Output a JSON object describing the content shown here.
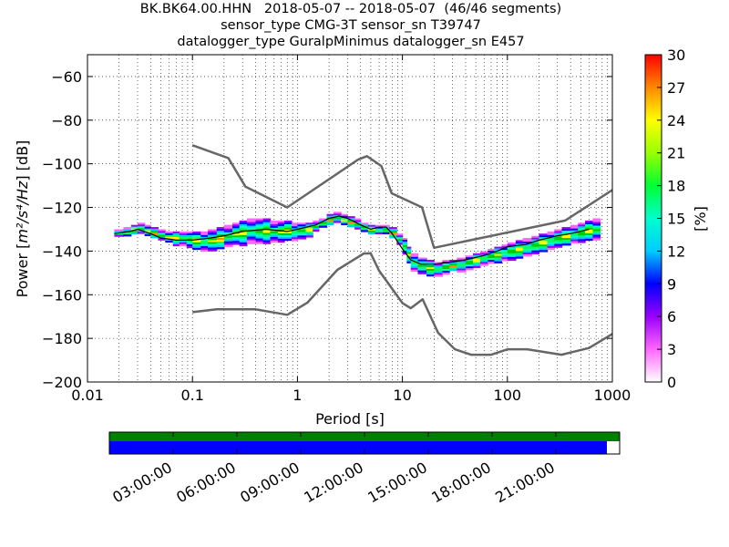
{
  "figure": {
    "title_lines": [
      "BK.BK64.00.HHN   2018-05-07 -- 2018-05-07  (46/46 segments)",
      "sensor_type CMG-3T sensor_sn T39747",
      "datalogger_type GuralpMinimus datalogger_sn E457"
    ]
  },
  "chart_data": [
    {
      "type": "heatmap",
      "title": "",
      "xlabel": "Period [s]",
      "ylabel_prefix": "Power [",
      "ylabel_math": "m²/s⁴/Hz",
      "ylabel_suffix": "] [dB]",
      "x_scale": "log",
      "xlim": [
        0.01,
        1000
      ],
      "ylim": [
        -200,
        -50
      ],
      "x_ticks": [
        0.01,
        0.1,
        1,
        10,
        100,
        1000
      ],
      "x_tick_labels": [
        "0.01",
        "0.1",
        "1",
        "10",
        "100",
        "1000"
      ],
      "y_ticks": [
        -200,
        -180,
        -160,
        -140,
        -120,
        -100,
        -80,
        -60
      ],
      "y_tick_labels": [
        "−200",
        "−180",
        "−160",
        "−140",
        "−120",
        "−100",
        "−80",
        "−60"
      ],
      "grid": true,
      "colorbar": {
        "label": "[%]",
        "range": [
          0,
          30
        ],
        "ticks": [
          0,
          3,
          6,
          9,
          12,
          15,
          18,
          21,
          24,
          27,
          30
        ],
        "tick_labels": [
          "0",
          "3",
          "6",
          "9",
          "12",
          "15",
          "18",
          "21",
          "24",
          "27",
          "30"
        ]
      },
      "mean_psd": {
        "name": "mean",
        "color": "#000000",
        "points": [
          [
            0.018,
            -132
          ],
          [
            0.025,
            -131
          ],
          [
            0.03,
            -130
          ],
          [
            0.04,
            -132
          ],
          [
            0.05,
            -134
          ],
          [
            0.07,
            -135
          ],
          [
            0.1,
            -135
          ],
          [
            0.15,
            -134
          ],
          [
            0.2,
            -133
          ],
          [
            0.3,
            -131
          ],
          [
            0.5,
            -130
          ],
          [
            0.8,
            -131
          ],
          [
            1,
            -130
          ],
          [
            1.5,
            -128
          ],
          [
            2,
            -125
          ],
          [
            2.5,
            -124
          ],
          [
            3,
            -125
          ],
          [
            4,
            -128
          ],
          [
            5,
            -130
          ],
          [
            6,
            -129
          ],
          [
            7,
            -129
          ],
          [
            8,
            -132
          ],
          [
            10,
            -139
          ],
          [
            12,
            -144
          ],
          [
            15,
            -146
          ],
          [
            20,
            -146
          ],
          [
            30,
            -145
          ],
          [
            40,
            -144
          ],
          [
            60,
            -142
          ],
          [
            80,
            -140
          ],
          [
            100,
            -138
          ],
          [
            150,
            -137
          ],
          [
            200,
            -135
          ],
          [
            300,
            -133
          ],
          [
            400,
            -132
          ],
          [
            600,
            -130
          ]
        ]
      },
      "noise_models": [
        {
          "name": "NHNM",
          "color": "#666666",
          "points": [
            [
              0.1,
              -91.5
            ],
            [
              0.22,
              -97.4
            ],
            [
              0.32,
              -110.5
            ],
            [
              0.8,
              -120
            ],
            [
              3.8,
              -98
            ],
            [
              4.6,
              -96.5
            ],
            [
              6.3,
              -101
            ],
            [
              7.9,
              -113.5
            ],
            [
              15.4,
              -120
            ],
            [
              20,
              -138.5
            ],
            [
              354.8,
              -126
            ],
            [
              1000,
              -112
            ]
          ]
        },
        {
          "name": "NLNM",
          "color": "#666666",
          "points": [
            [
              0.1,
              -168
            ],
            [
              0.17,
              -166.7
            ],
            [
              0.4,
              -166.7
            ],
            [
              0.8,
              -169.2
            ],
            [
              1.24,
              -163.7
            ],
            [
              2.4,
              -148.6
            ],
            [
              4.3,
              -141.1
            ],
            [
              5,
              -141.1
            ],
            [
              6,
              -149
            ],
            [
              10,
              -163.8
            ],
            [
              12,
              -166.2
            ],
            [
              15.6,
              -162.1
            ],
            [
              21.9,
              -177.5
            ],
            [
              31.6,
              -185
            ],
            [
              45,
              -187.5
            ],
            [
              70,
              -187.5
            ],
            [
              101,
              -185
            ],
            [
              154,
              -185
            ],
            [
              328,
              -187.5
            ],
            [
              600,
              -184.4
            ],
            [
              1000,
              -178
            ]
          ]
        }
      ],
      "histogram_colors": [
        "#ff66ff",
        "#9900ff",
        "#0000ff",
        "#00ccff",
        "#00ffcc",
        "#00ff66",
        "#00cc00",
        "#ffff00",
        "#ff8800",
        "#ff0000"
      ],
      "histogram_bands": [
        [
          0.018,
          -133,
          -130
        ],
        [
          0.022,
          -133,
          -129
        ],
        [
          0.026,
          -132,
          -128
        ],
        [
          0.03,
          -132,
          -127
        ],
        [
          0.035,
          -133,
          -128
        ],
        [
          0.04,
          -134,
          -129
        ],
        [
          0.047,
          -135,
          -130
        ],
        [
          0.055,
          -136,
          -131
        ],
        [
          0.065,
          -137,
          -131
        ],
        [
          0.075,
          -137,
          -131
        ],
        [
          0.088,
          -138,
          -131
        ],
        [
          0.1,
          -139,
          -131
        ],
        [
          0.12,
          -140,
          -131
        ],
        [
          0.14,
          -140,
          -130
        ],
        [
          0.17,
          -139,
          -129
        ],
        [
          0.2,
          -138,
          -128
        ],
        [
          0.24,
          -137,
          -127
        ],
        [
          0.28,
          -137,
          -126
        ],
        [
          0.33,
          -136,
          -125
        ],
        [
          0.4,
          -136,
          -125
        ],
        [
          0.47,
          -136,
          -125
        ],
        [
          0.55,
          -136,
          -126
        ],
        [
          0.65,
          -136,
          -126
        ],
        [
          0.75,
          -135,
          -126
        ],
        [
          0.88,
          -135,
          -127
        ],
        [
          1,
          -134,
          -127
        ],
        [
          1.2,
          -133,
          -127
        ],
        [
          1.4,
          -131,
          -126
        ],
        [
          1.6,
          -129,
          -125
        ],
        [
          1.9,
          -128,
          -123
        ],
        [
          2.2,
          -127,
          -122
        ],
        [
          2.6,
          -128,
          -123
        ],
        [
          3,
          -129,
          -124
        ],
        [
          3.5,
          -130,
          -125
        ],
        [
          4,
          -131,
          -127
        ],
        [
          4.7,
          -132,
          -128
        ],
        [
          5.5,
          -132,
          -128
        ],
        [
          6.5,
          -132,
          -128
        ],
        [
          7.5,
          -134,
          -129
        ],
        [
          8.8,
          -137,
          -132
        ],
        [
          10,
          -141,
          -134
        ],
        [
          11,
          -145,
          -138
        ],
        [
          12,
          -149,
          -141
        ],
        [
          14,
          -150,
          -143
        ],
        [
          17,
          -151,
          -144
        ],
        [
          20,
          -151,
          -145
        ],
        [
          24,
          -150,
          -144
        ],
        [
          28,
          -149,
          -144
        ],
        [
          33,
          -149,
          -143
        ],
        [
          40,
          -148,
          -142
        ],
        [
          47,
          -147,
          -141
        ],
        [
          55,
          -146,
          -140
        ],
        [
          65,
          -145,
          -139
        ],
        [
          75,
          -145,
          -138
        ],
        [
          88,
          -144,
          -137
        ],
        [
          100,
          -144,
          -136
        ],
        [
          120,
          -143,
          -135
        ],
        [
          140,
          -142,
          -134
        ],
        [
          170,
          -141,
          -133
        ],
        [
          200,
          -140,
          -132
        ],
        [
          240,
          -139,
          -131
        ],
        [
          280,
          -138,
          -130
        ],
        [
          330,
          -137,
          -129
        ],
        [
          400,
          -136,
          -128
        ],
        [
          470,
          -136,
          -127
        ],
        [
          550,
          -135,
          -126
        ],
        [
          650,
          -135,
          -125
        ]
      ]
    },
    {
      "type": "timeline",
      "title": "",
      "x_tick_labels": [
        "03:00:00",
        "06:00:00",
        "09:00:00",
        "12:00:00",
        "15:00:00",
        "18:00:00",
        "21:00:00"
      ],
      "x_ticks_hours": [
        3,
        6,
        9,
        12,
        15,
        18,
        21
      ],
      "range_hours": [
        0,
        24
      ],
      "segments": [
        {
          "name": "available",
          "color": "#008000",
          "start_hour": 0,
          "end_hour": 24
        },
        {
          "name": "processed",
          "color": "#0000ff",
          "start_hour": 0,
          "end_hour": 23.4
        }
      ]
    }
  ]
}
